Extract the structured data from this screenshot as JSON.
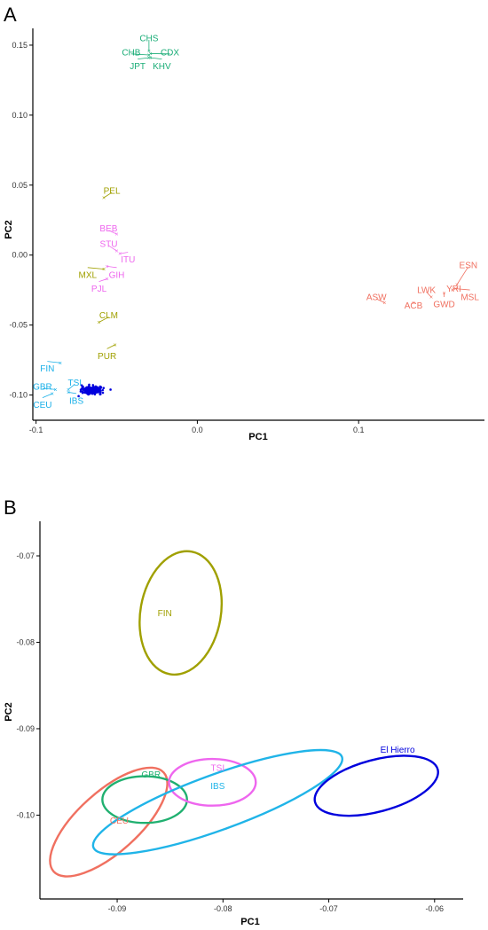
{
  "colors": {
    "east_asian": "#1aad77",
    "american": "#a0a000",
    "south_asian": "#ee66ee",
    "african": "#f07060",
    "european": "#1ab0e8",
    "el_hierro": "#0000dd",
    "ibs_ellipse": "#20b4e8",
    "fin_ellipse": "#a0a000",
    "gbr_ellipse": "#20b070",
    "ceu_ellipse": "#f07060",
    "tsi_ellipse": "#ee66ee"
  },
  "chart_data": [
    {
      "panel": "A",
      "type": "scatter",
      "xlabel": "PC1",
      "ylabel": "PC2",
      "xlim": [
        -0.102,
        0.178
      ],
      "ylim": [
        -0.118,
        0.162
      ],
      "xticks": [
        -0.1,
        0.0,
        0.1
      ],
      "xtick_labels": [
        "-0.1",
        "0.0",
        "0.1"
      ],
      "yticks": [
        0.15,
        0.1,
        0.05,
        0.0,
        -0.05,
        -0.1
      ],
      "ytick_labels": [
        "0.15",
        "0.10",
        "0.05",
        "0.00",
        "-0.05",
        "-0.10"
      ],
      "grid": false,
      "points": [
        {
          "name": "CHS",
          "x": -0.03,
          "y": 0.146,
          "group": "east_asian",
          "lx": -0.03,
          "ly": 0.155
        },
        {
          "name": "CHB",
          "x": -0.03,
          "y": 0.143,
          "group": "east_asian",
          "lx": -0.041,
          "ly": 0.145
        },
        {
          "name": "CDX",
          "x": -0.029,
          "y": 0.144,
          "group": "east_asian",
          "lx": -0.017,
          "ly": 0.145
        },
        {
          "name": "JPT",
          "x": -0.03,
          "y": 0.141,
          "group": "east_asian",
          "lx": -0.037,
          "ly": 0.135
        },
        {
          "name": "KHV",
          "x": -0.029,
          "y": 0.141,
          "group": "east_asian",
          "lx": -0.022,
          "ly": 0.135
        },
        {
          "name": "PEL",
          "x": -0.058,
          "y": 0.041,
          "group": "american",
          "lx": -0.053,
          "ly": 0.046
        },
        {
          "name": "BEB",
          "x": -0.05,
          "y": 0.015,
          "group": "south_asian",
          "lx": -0.055,
          "ly": 0.019
        },
        {
          "name": "STU",
          "x": -0.05,
          "y": 0.003,
          "group": "south_asian",
          "lx": -0.055,
          "ly": 0.008
        },
        {
          "name": "ITU",
          "x": -0.048,
          "y": 0.001,
          "group": "south_asian",
          "lx": -0.043,
          "ly": -0.003
        },
        {
          "name": "MXL",
          "x": -0.058,
          "y": -0.01,
          "group": "american",
          "lx": -0.068,
          "ly": -0.014
        },
        {
          "name": "GIH",
          "x": -0.056,
          "y": -0.008,
          "group": "south_asian",
          "lx": -0.05,
          "ly": -0.014
        },
        {
          "name": "PJL",
          "x": -0.056,
          "y": -0.017,
          "group": "south_asian",
          "lx": -0.061,
          "ly": -0.024
        },
        {
          "name": "CLM",
          "x": -0.061,
          "y": -0.048,
          "group": "american",
          "lx": -0.055,
          "ly": -0.043
        },
        {
          "name": "PUR",
          "x": -0.051,
          "y": -0.064,
          "group": "american",
          "lx": -0.056,
          "ly": -0.072
        },
        {
          "name": "ESN",
          "x": 0.161,
          "y": -0.021,
          "group": "african",
          "lx": 0.168,
          "ly": -0.007
        },
        {
          "name": "YRI",
          "x": 0.158,
          "y": -0.025,
          "group": "african",
          "lx": 0.159,
          "ly": -0.024
        },
        {
          "name": "ASW",
          "x": 0.116,
          "y": -0.034,
          "group": "african",
          "lx": 0.111,
          "ly": -0.03
        },
        {
          "name": "LWK",
          "x": 0.145,
          "y": -0.03,
          "group": "african",
          "lx": 0.142,
          "ly": -0.025
        },
        {
          "name": "MSL",
          "x": 0.16,
          "y": -0.024,
          "group": "african",
          "lx": 0.169,
          "ly": -0.03
        },
        {
          "name": "ACB",
          "x": 0.134,
          "y": -0.034,
          "group": "african",
          "lx": 0.134,
          "ly": -0.036
        },
        {
          "name": "GWD",
          "x": 0.153,
          "y": -0.027,
          "group": "african",
          "lx": 0.153,
          "ly": -0.035
        },
        {
          "name": "FIN",
          "x": -0.085,
          "y": -0.077,
          "group": "european",
          "lx": -0.093,
          "ly": -0.081
        },
        {
          "name": "GBR",
          "x": -0.088,
          "y": -0.096,
          "group": "european",
          "lx": -0.096,
          "ly": -0.094
        },
        {
          "name": "TSI",
          "x": -0.08,
          "y": -0.096,
          "group": "european",
          "lx": -0.076,
          "ly": -0.091
        },
        {
          "name": "IBS",
          "x": -0.08,
          "y": -0.098,
          "group": "european",
          "lx": -0.075,
          "ly": -0.104
        },
        {
          "name": "CEU",
          "x": -0.09,
          "y": -0.099,
          "group": "european",
          "lx": -0.096,
          "ly": -0.107
        }
      ],
      "cluster": {
        "name": "El Hierro",
        "cx": -0.0655,
        "cy": -0.0966,
        "sx": 0.003,
        "sy": 0.0012,
        "n": 260,
        "group": "el_hierro"
      }
    },
    {
      "panel": "B",
      "type": "scatter",
      "xlabel": "PC1",
      "ylabel": "PC2",
      "xlim": [
        -0.0973,
        -0.0573
      ],
      "ylim": [
        -0.1097,
        -0.066
      ],
      "xticks": [
        -0.09,
        -0.08,
        -0.07,
        -0.06
      ],
      "xtick_labels": [
        "-0.09",
        "-0.08",
        "-0.07",
        "-0.06"
      ],
      "yticks": [
        -0.07,
        -0.08,
        -0.09,
        -0.1
      ],
      "ytick_labels": [
        "-0.07",
        "-0.08",
        "-0.09",
        "-0.10"
      ],
      "grid": false,
      "ellipses": [
        {
          "name": "FIN",
          "cx": -0.084,
          "cy": -0.0766,
          "rx": 0.0038,
          "ry": 0.0072,
          "angle": 10,
          "group": "fin_ellipse",
          "lx": -0.0855,
          "ly": -0.0766
        },
        {
          "name": "CEU",
          "cx": -0.0908,
          "cy": -0.1008,
          "rx": 0.007,
          "ry": 0.0035,
          "angle": -42,
          "group": "ceu_ellipse",
          "lx": -0.0898,
          "ly": -0.1006
        },
        {
          "name": "GBR",
          "cx": -0.0874,
          "cy": -0.0982,
          "rx": 0.004,
          "ry": 0.0027,
          "angle": 0,
          "group": "gbr_ellipse",
          "lx": -0.0868,
          "ly": -0.0953
        },
        {
          "name": "TSI",
          "cx": -0.081,
          "cy": -0.0962,
          "rx": 0.0041,
          "ry": 0.0027,
          "angle": 0,
          "group": "tsi_ellipse",
          "lx": -0.0805,
          "ly": -0.0945
        },
        {
          "name": "IBS",
          "cx": -0.0805,
          "cy": -0.0985,
          "rx": 0.0125,
          "ry": 0.0032,
          "angle": -20,
          "group": "ibs_ellipse",
          "lx": -0.0805,
          "ly": -0.0966
        },
        {
          "name": "El Hierro",
          "cx": -0.0655,
          "cy": -0.0966,
          "rx": 0.006,
          "ry": 0.003,
          "angle": -15,
          "group": "el_hierro",
          "lx": -0.0635,
          "ly": -0.0924
        }
      ]
    }
  ]
}
